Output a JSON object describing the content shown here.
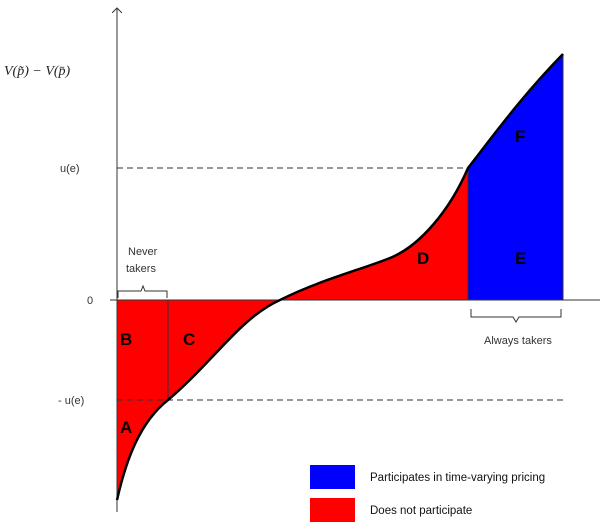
{
  "y_axis_label": "V(p̃) − V(p̄)",
  "y_ticks": {
    "upper": "u(e)",
    "zero": "0",
    "lower": "- u(e)"
  },
  "regions": {
    "a": "A",
    "b": "B",
    "c": "C",
    "d": "D",
    "e": "E",
    "f": "F"
  },
  "brackets": {
    "never_line1": "Never",
    "never_line2": "takers",
    "always": "Always takers"
  },
  "legend": [
    {
      "label": "Participates in time-varying pricing",
      "color": "#0000ff"
    },
    {
      "label": "Does not participate",
      "color": "#ff0000"
    }
  ],
  "colors": {
    "participates": "#0000ff",
    "not_participate": "#ff0000",
    "curve": "#000000"
  }
}
